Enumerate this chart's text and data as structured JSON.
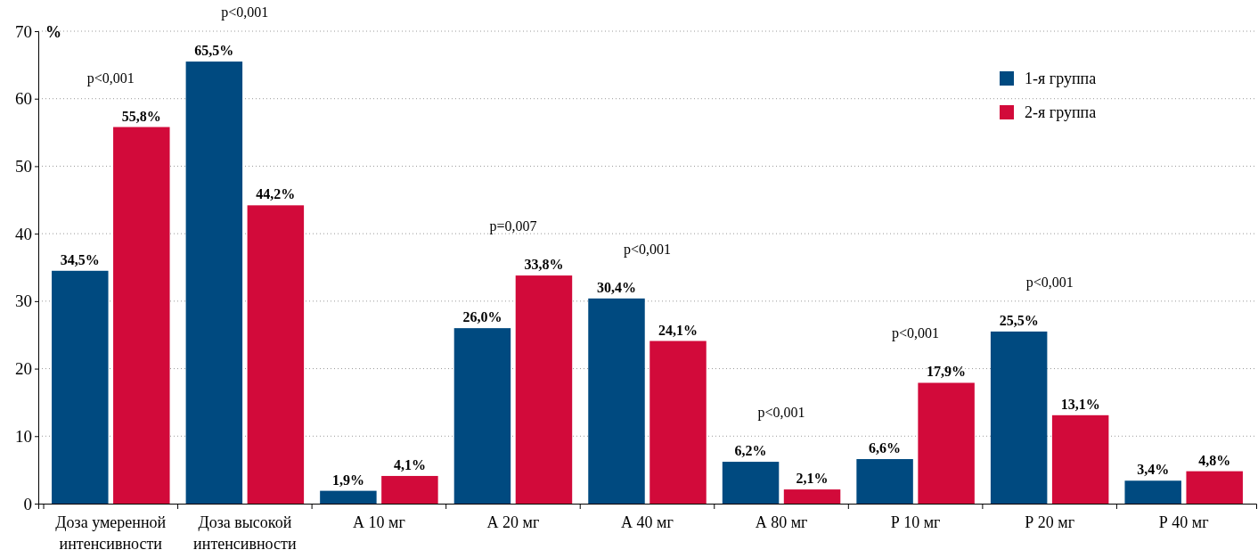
{
  "chart_data": {
    "type": "bar",
    "ylabel": "%",
    "categories": [
      "Доза умеренной интенсивности",
      "Доза высокой интенсивности",
      "А 10 мг",
      "А 20 мг",
      "А 40 мг",
      "А 80 мг",
      "Р 10 мг",
      "Р 20 мг",
      "Р 40 мг"
    ],
    "series": [
      {
        "name": "1-я группа",
        "color": "#004a80",
        "values": [
          34.5,
          65.5,
          1.9,
          26.0,
          30.4,
          6.2,
          6.6,
          25.5,
          3.4
        ]
      },
      {
        "name": "2-я группа",
        "color": "#d20a3a",
        "values": [
          55.8,
          44.2,
          4.1,
          33.8,
          24.1,
          2.1,
          17.9,
          13.1,
          4.8
        ]
      }
    ],
    "value_labels": [
      [
        "34,5%",
        "65,5%",
        "1,9%",
        "26,0%",
        "30,4%",
        "6,2%",
        "6,6%",
        "25,5%",
        "3,4%"
      ],
      [
        "55,8%",
        "44,2%",
        "4,1%",
        "33,8%",
        "24,1%",
        "2,1%",
        "17,9%",
        "13,1%",
        "4,8%"
      ]
    ],
    "ylim": [
      0,
      70
    ],
    "yticks": [
      0,
      10,
      20,
      30,
      40,
      50,
      60,
      70
    ],
    "grid": "y",
    "legend": "top right",
    "annotations": [
      "p<0,001",
      "p<0,001",
      "p=0,007",
      "p<0,001",
      "p<0,001",
      "p<0,001",
      "p<0,001"
    ]
  }
}
